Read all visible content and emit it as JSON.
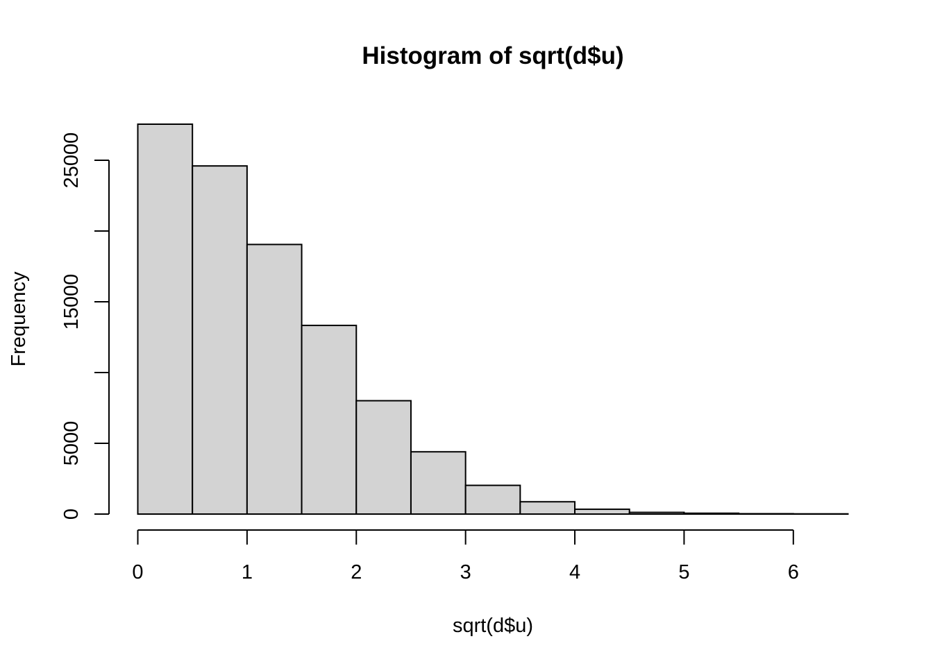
{
  "chart_data": {
    "type": "bar",
    "title": "Histogram of sqrt(d$u)",
    "xlabel": "sqrt(d$u)",
    "ylabel": "Frequency",
    "bin_edges": [
      0,
      0.5,
      1,
      1.5,
      2,
      2.5,
      3,
      3.5,
      4,
      4.5,
      5,
      5.5,
      6,
      6.5
    ],
    "values": [
      27550,
      24600,
      19050,
      13330,
      8010,
      4400,
      2030,
      870,
      340,
      120,
      60,
      25,
      15
    ],
    "xlim": [
      0,
      6.5
    ],
    "ylim": [
      0,
      27550
    ],
    "x_ticks": [
      0,
      1,
      2,
      3,
      4,
      5,
      6
    ],
    "y_ticks": [
      0,
      5000,
      10000,
      15000,
      20000,
      25000
    ],
    "y_tick_labels": [
      "0",
      "5000",
      "",
      "15000",
      "",
      "25000"
    ],
    "x_tick_labels": [
      "0",
      "1",
      "2",
      "3",
      "4",
      "5",
      "6"
    ],
    "grid": false,
    "legend": "none",
    "bar_color": "#d3d3d3",
    "edge_color": "#000000"
  }
}
